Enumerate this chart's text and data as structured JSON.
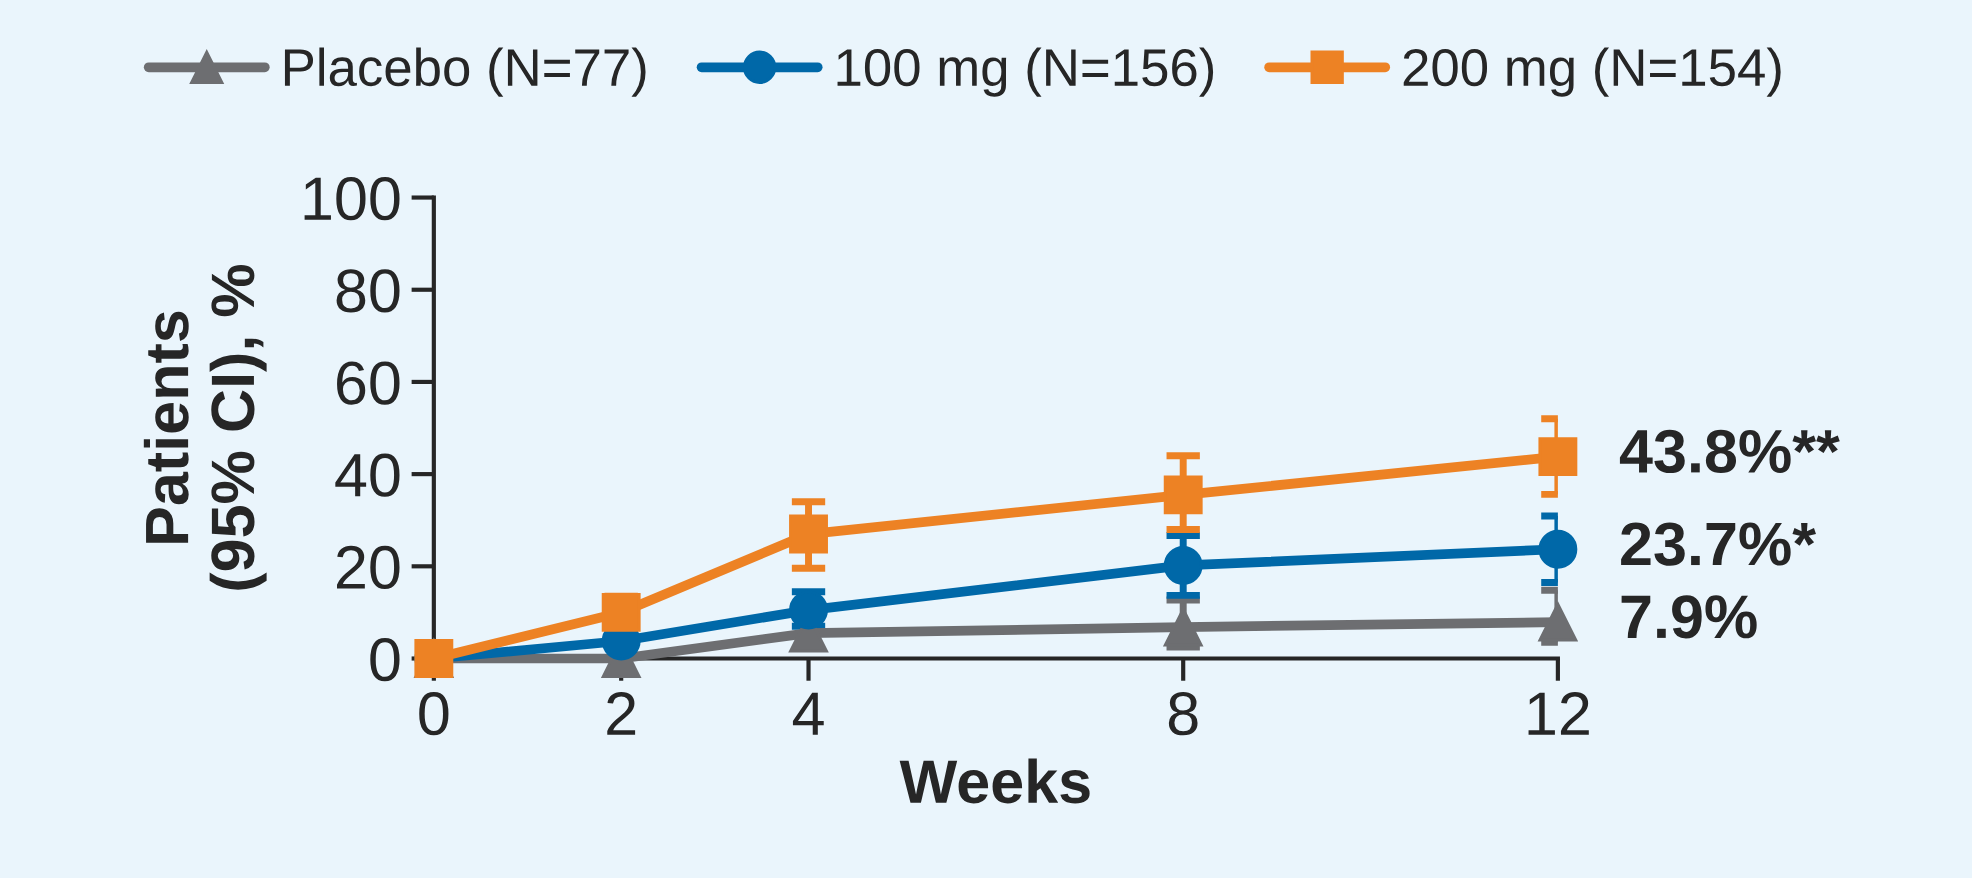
{
  "chart_data": {
    "type": "line",
    "xlabel": "Weeks",
    "ylabel": "Patients\n(95% CI), %",
    "x": [
      0,
      2,
      4,
      8,
      12
    ],
    "series": [
      {
        "name": "Placebo (N=77)",
        "color": "#6d6e71",
        "marker": "triangle",
        "values": [
          0,
          0,
          5.5,
          6.8,
          7.9
        ],
        "value_labels": [
          null,
          null,
          null,
          null,
          "7.9%"
        ],
        "errors": [
          null,
          null,
          null,
          [
            2.5,
            12.7
          ],
          [
            3.5,
            14.8
          ]
        ]
      },
      {
        "name": "100 mg (N=156)",
        "color": "#0068a8",
        "marker": "circle",
        "values": [
          0,
          3.8,
          10.5,
          20.2,
          23.7
        ],
        "value_labels": [
          null,
          null,
          null,
          null,
          "23.7%*"
        ],
        "errors": [
          null,
          null,
          [
            7,
            14.5
          ],
          [
            13.7,
            26.7
          ],
          [
            16.5,
            30.9
          ]
        ]
      },
      {
        "name": "200 mg (N=154)",
        "color": "#ed8224",
        "marker": "square",
        "values": [
          0,
          10,
          27,
          35.5,
          43.8
        ],
        "value_labels": [
          null,
          null,
          null,
          null,
          "43.8%**"
        ],
        "errors": [
          null,
          [
            6.5,
            13.5
          ],
          [
            19.6,
            34
          ],
          [
            28,
            44
          ],
          [
            35.6,
            52
          ]
        ]
      }
    ],
    "xlim": [
      0,
      12
    ],
    "xticks": [
      0,
      2,
      4,
      8,
      12
    ],
    "ylim": [
      0,
      100
    ],
    "yticks": [
      0,
      20,
      40,
      60,
      80,
      100
    ],
    "grid": false,
    "legend": "top",
    "line_style": "solid"
  }
}
